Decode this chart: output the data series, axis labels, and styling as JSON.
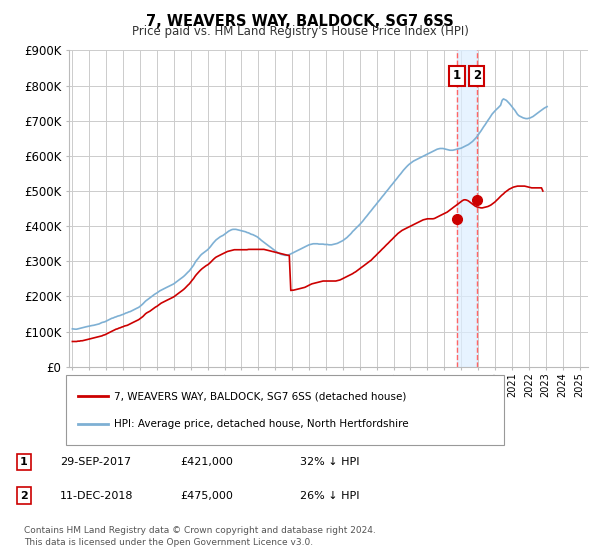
{
  "title": "7, WEAVERS WAY, BALDOCK, SG7 6SS",
  "subtitle": "Price paid vs. HM Land Registry's House Price Index (HPI)",
  "ylim": [
    0,
    900000
  ],
  "yticks": [
    0,
    100000,
    200000,
    300000,
    400000,
    500000,
    600000,
    700000,
    800000,
    900000
  ],
  "ytick_labels": [
    "£0",
    "£100K",
    "£200K",
    "£300K",
    "£400K",
    "£500K",
    "£600K",
    "£700K",
    "£800K",
    "£900K"
  ],
  "red_color": "#cc0000",
  "blue_color": "#7eb0d4",
  "marker_color": "#cc0000",
  "vline_color": "#ffaaaa",
  "vline_color2": "#ff6666",
  "shade_color": "#ddeeff",
  "transaction1": {
    "date": "29-SEP-2017",
    "price": 421000,
    "pct": "32%",
    "dir": "↓",
    "label": "1"
  },
  "transaction2": {
    "date": "11-DEC-2018",
    "price": 475000,
    "pct": "26%",
    "dir": "↓",
    "label": "2"
  },
  "legend_red": "7, WEAVERS WAY, BALDOCK, SG7 6SS (detached house)",
  "legend_blue": "HPI: Average price, detached house, North Hertfordshire",
  "footnote": "Contains HM Land Registry data © Crown copyright and database right 2024.\nThis data is licensed under the Open Government Licence v3.0.",
  "background_color": "#ffffff",
  "grid_color": "#cccccc",
  "t1_x": 2017.75,
  "t1_y": 421000,
  "t2_x": 2018.92,
  "t2_y": 475000,
  "xlim_left": 1994.8,
  "xlim_right": 2025.5,
  "hpi_x": [
    1995.0,
    1995.08,
    1995.17,
    1995.25,
    1995.33,
    1995.42,
    1995.5,
    1995.58,
    1995.67,
    1995.75,
    1995.83,
    1995.92,
    1996.0,
    1996.08,
    1996.17,
    1996.25,
    1996.33,
    1996.42,
    1996.5,
    1996.58,
    1996.67,
    1996.75,
    1996.83,
    1996.92,
    1997.0,
    1997.08,
    1997.17,
    1997.25,
    1997.33,
    1997.42,
    1997.5,
    1997.58,
    1997.67,
    1997.75,
    1997.83,
    1997.92,
    1998.0,
    1998.08,
    1998.17,
    1998.25,
    1998.33,
    1998.42,
    1998.5,
    1998.58,
    1998.67,
    1998.75,
    1998.83,
    1998.92,
    1999.0,
    1999.08,
    1999.17,
    1999.25,
    1999.33,
    1999.42,
    1999.5,
    1999.58,
    1999.67,
    1999.75,
    1999.83,
    1999.92,
    2000.0,
    2000.08,
    2000.17,
    2000.25,
    2000.33,
    2000.42,
    2000.5,
    2000.58,
    2000.67,
    2000.75,
    2000.83,
    2000.92,
    2001.0,
    2001.08,
    2001.17,
    2001.25,
    2001.33,
    2001.42,
    2001.5,
    2001.58,
    2001.67,
    2001.75,
    2001.83,
    2001.92,
    2002.0,
    2002.08,
    2002.17,
    2002.25,
    2002.33,
    2002.42,
    2002.5,
    2002.58,
    2002.67,
    2002.75,
    2002.83,
    2002.92,
    2003.0,
    2003.08,
    2003.17,
    2003.25,
    2003.33,
    2003.42,
    2003.5,
    2003.58,
    2003.67,
    2003.75,
    2003.83,
    2003.92,
    2004.0,
    2004.08,
    2004.17,
    2004.25,
    2004.33,
    2004.42,
    2004.5,
    2004.58,
    2004.67,
    2004.75,
    2004.83,
    2004.92,
    2005.0,
    2005.08,
    2005.17,
    2005.25,
    2005.33,
    2005.42,
    2005.5,
    2005.58,
    2005.67,
    2005.75,
    2005.83,
    2005.92,
    2006.0,
    2006.08,
    2006.17,
    2006.25,
    2006.33,
    2006.42,
    2006.5,
    2006.58,
    2006.67,
    2006.75,
    2006.83,
    2006.92,
    2007.0,
    2007.08,
    2007.17,
    2007.25,
    2007.33,
    2007.42,
    2007.5,
    2007.58,
    2007.67,
    2007.75,
    2007.83,
    2007.92,
    2008.0,
    2008.08,
    2008.17,
    2008.25,
    2008.33,
    2008.42,
    2008.5,
    2008.58,
    2008.67,
    2008.75,
    2008.83,
    2008.92,
    2009.0,
    2009.08,
    2009.17,
    2009.25,
    2009.33,
    2009.42,
    2009.5,
    2009.58,
    2009.67,
    2009.75,
    2009.83,
    2009.92,
    2010.0,
    2010.08,
    2010.17,
    2010.25,
    2010.33,
    2010.42,
    2010.5,
    2010.58,
    2010.67,
    2010.75,
    2010.83,
    2010.92,
    2011.0,
    2011.08,
    2011.17,
    2011.25,
    2011.33,
    2011.42,
    2011.5,
    2011.58,
    2011.67,
    2011.75,
    2011.83,
    2011.92,
    2012.0,
    2012.08,
    2012.17,
    2012.25,
    2012.33,
    2012.42,
    2012.5,
    2012.58,
    2012.67,
    2012.75,
    2012.83,
    2012.92,
    2013.0,
    2013.08,
    2013.17,
    2013.25,
    2013.33,
    2013.42,
    2013.5,
    2013.58,
    2013.67,
    2013.75,
    2013.83,
    2013.92,
    2014.0,
    2014.08,
    2014.17,
    2014.25,
    2014.33,
    2014.42,
    2014.5,
    2014.58,
    2014.67,
    2014.75,
    2014.83,
    2014.92,
    2015.0,
    2015.08,
    2015.17,
    2015.25,
    2015.33,
    2015.42,
    2015.5,
    2015.58,
    2015.67,
    2015.75,
    2015.83,
    2015.92,
    2016.0,
    2016.08,
    2016.17,
    2016.25,
    2016.33,
    2016.42,
    2016.5,
    2016.58,
    2016.67,
    2016.75,
    2016.83,
    2016.92,
    2017.0,
    2017.08,
    2017.17,
    2017.25,
    2017.33,
    2017.42,
    2017.5,
    2017.58,
    2017.67,
    2017.75,
    2017.83,
    2017.92,
    2018.0,
    2018.08,
    2018.17,
    2018.25,
    2018.33,
    2018.42,
    2018.5,
    2018.58,
    2018.67,
    2018.75,
    2018.83,
    2018.92,
    2019.0,
    2019.08,
    2019.17,
    2019.25,
    2019.33,
    2019.42,
    2019.5,
    2019.58,
    2019.67,
    2019.75,
    2019.83,
    2019.92,
    2020.0,
    2020.08,
    2020.17,
    2020.25,
    2020.33,
    2020.42,
    2020.5,
    2020.58,
    2020.67,
    2020.75,
    2020.83,
    2020.92,
    2021.0,
    2021.08,
    2021.17,
    2021.25,
    2021.33,
    2021.42,
    2021.5,
    2021.58,
    2021.67,
    2021.75,
    2021.83,
    2021.92,
    2022.0,
    2022.08,
    2022.17,
    2022.25,
    2022.33,
    2022.42,
    2022.5,
    2022.58,
    2022.67,
    2022.75,
    2022.83,
    2022.92,
    2023.0,
    2023.08,
    2023.17,
    2023.25,
    2023.33,
    2023.42,
    2023.5,
    2023.58,
    2023.67,
    2023.75,
    2023.83,
    2023.92,
    2024.0,
    2024.08,
    2024.17,
    2024.25,
    2024.33,
    2024.42,
    2024.5
  ],
  "hpi_y": [
    108000,
    107500,
    107000,
    107000,
    108000,
    109000,
    110000,
    111000,
    112000,
    113000,
    114000,
    115000,
    116000,
    117000,
    117500,
    118000,
    119000,
    120000,
    121000,
    122000,
    124000,
    126000,
    127000,
    128000,
    130000,
    132000,
    134000,
    136000,
    138000,
    139000,
    141000,
    142000,
    144000,
    145000,
    146000,
    148000,
    149000,
    151000,
    153000,
    154000,
    156000,
    157000,
    159000,
    161000,
    163000,
    165000,
    167000,
    169000,
    172000,
    175000,
    179000,
    183000,
    187000,
    190000,
    193000,
    196000,
    199000,
    202000,
    205000,
    208000,
    210000,
    213000,
    216000,
    218000,
    220000,
    222000,
    224000,
    226000,
    228000,
    230000,
    232000,
    234000,
    236000,
    239000,
    242000,
    245000,
    248000,
    251000,
    254000,
    257000,
    261000,
    265000,
    269000,
    273000,
    278000,
    283000,
    289000,
    296000,
    302000,
    307000,
    312000,
    317000,
    321000,
    324000,
    327000,
    330000,
    333000,
    337000,
    342000,
    347000,
    352000,
    357000,
    361000,
    364000,
    367000,
    370000,
    372000,
    374000,
    377000,
    380000,
    383000,
    386000,
    388000,
    390000,
    391000,
    391000,
    391000,
    390000,
    389000,
    388000,
    387000,
    386000,
    385000,
    384000,
    382000,
    381000,
    379000,
    377000,
    376000,
    374000,
    372000,
    370000,
    367000,
    364000,
    360000,
    357000,
    354000,
    351000,
    348000,
    345000,
    342000,
    339000,
    336000,
    333000,
    330000,
    327000,
    324000,
    322000,
    320000,
    319000,
    318000,
    317000,
    317000,
    318000,
    319000,
    321000,
    323000,
    325000,
    327000,
    329000,
    331000,
    333000,
    335000,
    337000,
    339000,
    341000,
    343000,
    345000,
    347000,
    348000,
    349000,
    350000,
    350000,
    350000,
    350000,
    349000,
    349000,
    349000,
    349000,
    348000,
    348000,
    348000,
    347000,
    347000,
    347000,
    348000,
    349000,
    350000,
    351000,
    353000,
    355000,
    357000,
    359000,
    362000,
    365000,
    368000,
    372000,
    376000,
    380000,
    385000,
    389000,
    393000,
    397000,
    401000,
    405000,
    409000,
    414000,
    419000,
    424000,
    429000,
    434000,
    439000,
    444000,
    449000,
    454000,
    459000,
    464000,
    469000,
    474000,
    479000,
    484000,
    489000,
    494000,
    499000,
    504000,
    509000,
    514000,
    519000,
    524000,
    529000,
    534000,
    539000,
    544000,
    549000,
    554000,
    559000,
    564000,
    568000,
    572000,
    576000,
    579000,
    582000,
    585000,
    587000,
    589000,
    591000,
    593000,
    595000,
    597000,
    599000,
    601000,
    603000,
    605000,
    607000,
    609000,
    611000,
    613000,
    615000,
    617000,
    619000,
    620000,
    621000,
    621000,
    621000,
    620000,
    619000,
    618000,
    617000,
    616000,
    616000,
    616000,
    617000,
    618000,
    619000,
    620000,
    621000,
    622000,
    624000,
    626000,
    628000,
    630000,
    632000,
    635000,
    638000,
    641000,
    645000,
    649000,
    654000,
    659000,
    665000,
    671000,
    677000,
    683000,
    689000,
    695000,
    701000,
    707000,
    713000,
    719000,
    724000,
    728000,
    732000,
    736000,
    740000,
    744000,
    758000,
    762000,
    760000,
    758000,
    754000,
    750000,
    745000,
    740000,
    735000,
    730000,
    724000,
    718000,
    714000,
    712000,
    710000,
    708000,
    707000,
    706000,
    706000,
    707000,
    708000,
    710000,
    712000,
    715000,
    718000,
    721000,
    724000,
    727000,
    730000,
    733000,
    736000,
    738000,
    740000
  ],
  "red_y": [
    72000,
    72000,
    72000,
    72000,
    73000,
    73000,
    74000,
    74000,
    75000,
    76000,
    77000,
    78000,
    79000,
    80000,
    81000,
    82000,
    83000,
    84000,
    85000,
    86000,
    87000,
    88000,
    90000,
    91000,
    93000,
    95000,
    97000,
    99000,
    101000,
    103000,
    105000,
    107000,
    108000,
    110000,
    111000,
    113000,
    114000,
    116000,
    117000,
    118000,
    120000,
    122000,
    124000,
    126000,
    128000,
    130000,
    132000,
    134000,
    137000,
    140000,
    143000,
    147000,
    151000,
    154000,
    156000,
    158000,
    161000,
    164000,
    167000,
    170000,
    172000,
    175000,
    178000,
    181000,
    183000,
    185000,
    187000,
    189000,
    191000,
    193000,
    195000,
    197000,
    199000,
    202000,
    205000,
    208000,
    211000,
    214000,
    217000,
    220000,
    224000,
    228000,
    232000,
    236000,
    241000,
    246000,
    251000,
    257000,
    262000,
    267000,
    271000,
    275000,
    279000,
    282000,
    285000,
    288000,
    290000,
    293000,
    297000,
    301000,
    305000,
    309000,
    312000,
    314000,
    316000,
    318000,
    320000,
    322000,
    324000,
    326000,
    328000,
    329000,
    330000,
    331000,
    332000,
    333000,
    333000,
    333000,
    333000,
    333000,
    333000,
    333000,
    333000,
    333000,
    333000,
    334000,
    334000,
    334000,
    334000,
    334000,
    334000,
    334000,
    334000,
    334000,
    334000,
    334000,
    334000,
    333000,
    332000,
    331000,
    330000,
    329000,
    328000,
    327000,
    326000,
    325000,
    324000,
    323000,
    322000,
    321000,
    320000,
    319000,
    318000,
    317000,
    317000,
    217000,
    218000,
    218000,
    219000,
    220000,
    221000,
    222000,
    223000,
    224000,
    225000,
    226000,
    228000,
    230000,
    232000,
    234000,
    236000,
    237000,
    238000,
    239000,
    240000,
    241000,
    242000,
    243000,
    244000,
    244000,
    244000,
    244000,
    244000,
    244000,
    244000,
    244000,
    244000,
    244000,
    245000,
    246000,
    247000,
    249000,
    251000,
    253000,
    255000,
    257000,
    259000,
    261000,
    263000,
    265000,
    268000,
    270000,
    273000,
    276000,
    279000,
    282000,
    285000,
    288000,
    291000,
    294000,
    297000,
    300000,
    303000,
    307000,
    311000,
    315000,
    319000,
    323000,
    327000,
    331000,
    335000,
    339000,
    343000,
    347000,
    351000,
    355000,
    359000,
    363000,
    367000,
    371000,
    375000,
    379000,
    382000,
    385000,
    388000,
    390000,
    392000,
    394000,
    396000,
    398000,
    400000,
    402000,
    404000,
    406000,
    408000,
    410000,
    412000,
    414000,
    416000,
    418000,
    419000,
    420000,
    421000,
    421000,
    421000,
    421000,
    421000,
    422000,
    424000,
    426000,
    428000,
    430000,
    432000,
    434000,
    436000,
    438000,
    440000,
    443000,
    446000,
    449000,
    452000,
    455000,
    458000,
    461000,
    464000,
    467000,
    470000,
    473000,
    475000,
    475000,
    474000,
    472000,
    469000,
    466000,
    463000,
    460000,
    457000,
    455000,
    454000,
    453000,
    452000,
    452000,
    453000,
    454000,
    455000,
    456000,
    458000,
    460000,
    463000,
    466000,
    469000,
    473000,
    477000,
    481000,
    485000,
    489000,
    492000,
    496000,
    499000,
    502000,
    505000,
    507000,
    509000,
    511000,
    512000,
    513000,
    514000,
    514000,
    514000,
    514000,
    514000,
    514000,
    513000,
    512000,
    511000,
    510000,
    509000,
    509000,
    509000,
    509000,
    509000,
    509000,
    509000,
    509000,
    500000
  ]
}
